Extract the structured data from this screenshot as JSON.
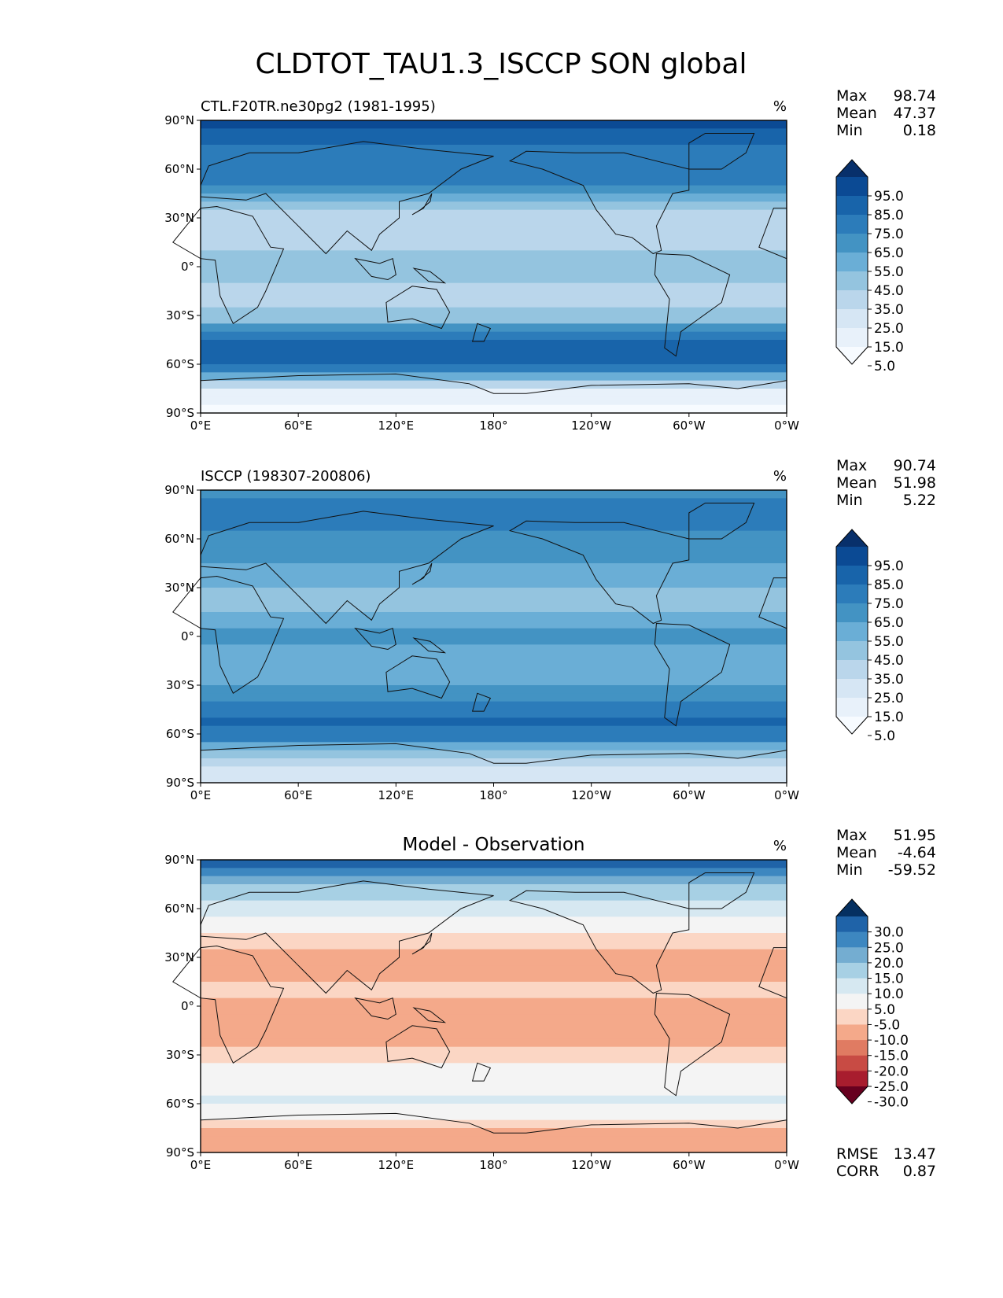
{
  "figure_title": "CLDTOT_TAU1.3_ISCCP SON global",
  "chart_data": [
    {
      "type": "heatmap",
      "panel": "test",
      "title_left": "CTL.F20TR.ne30pg2 (1981-1995)",
      "title_center": "",
      "units": "%",
      "xticks": [
        "0°E",
        "60°E",
        "120°E",
        "180°",
        "120°W",
        "60°W",
        "0°W"
      ],
      "yticks": [
        "90°N",
        "60°N",
        "30°N",
        "0°",
        "30°S",
        "60°S",
        "90°S"
      ],
      "xlim": [
        0,
        360
      ],
      "ylim": [
        -90,
        90
      ],
      "stats": [
        {
          "label": "Max",
          "value": "98.74"
        },
        {
          "label": "Mean",
          "value": "47.37"
        },
        {
          "label": "Min",
          "value": "0.18"
        }
      ],
      "colorbar": {
        "extend": "both",
        "tick_labels": [
          "95.0",
          "85.0",
          "75.0",
          "65.0",
          "55.0",
          "45.0",
          "35.0",
          "25.0",
          "15.0",
          "5.0"
        ],
        "colors": [
          "#08306b",
          "#0b4a94",
          "#1864aa",
          "#2c7cba",
          "#4393c3",
          "#6aaed6",
          "#94c4df",
          "#bad6eb",
          "#d6e6f4",
          "#e8f1fa",
          "#f7fbff"
        ]
      },
      "zonal_profile": [
        {
          "lat": 90,
          "value": 92
        },
        {
          "lat": 80,
          "value": 80
        },
        {
          "lat": 70,
          "value": 72
        },
        {
          "lat": 60,
          "value": 75
        },
        {
          "lat": 50,
          "value": 66
        },
        {
          "lat": 40,
          "value": 42
        },
        {
          "lat": 30,
          "value": 28
        },
        {
          "lat": 20,
          "value": 26
        },
        {
          "lat": 10,
          "value": 36
        },
        {
          "lat": 0,
          "value": 42
        },
        {
          "lat": -10,
          "value": 36
        },
        {
          "lat": -20,
          "value": 30
        },
        {
          "lat": -30,
          "value": 38
        },
        {
          "lat": -40,
          "value": 62
        },
        {
          "lat": -50,
          "value": 80
        },
        {
          "lat": -60,
          "value": 85
        },
        {
          "lat": -70,
          "value": 40
        },
        {
          "lat": -80,
          "value": 6
        },
        {
          "lat": -90,
          "value": 3
        }
      ]
    },
    {
      "type": "heatmap",
      "panel": "reference",
      "title_left": "ISCCP (198307-200806)",
      "title_center": "",
      "units": "%",
      "xticks": [
        "0°E",
        "60°E",
        "120°E",
        "180°",
        "120°W",
        "60°W",
        "0°W"
      ],
      "yticks": [
        "90°N",
        "60°N",
        "30°N",
        "0°",
        "30°S",
        "60°S",
        "90°S"
      ],
      "xlim": [
        0,
        360
      ],
      "ylim": [
        -90,
        90
      ],
      "stats": [
        {
          "label": "Max",
          "value": "90.74"
        },
        {
          "label": "Mean",
          "value": "51.98"
        },
        {
          "label": "Min",
          "value": "5.22"
        }
      ],
      "colorbar": {
        "extend": "both",
        "tick_labels": [
          "95.0",
          "85.0",
          "75.0",
          "65.0",
          "55.0",
          "45.0",
          "35.0",
          "25.0",
          "15.0",
          "5.0"
        ],
        "colors": [
          "#08306b",
          "#0b4a94",
          "#1864aa",
          "#2c7cba",
          "#4393c3",
          "#6aaed6",
          "#94c4df",
          "#bad6eb",
          "#d6e6f4",
          "#e8f1fa",
          "#f7fbff"
        ]
      },
      "zonal_profile": [
        {
          "lat": 90,
          "value": 60
        },
        {
          "lat": 80,
          "value": 70
        },
        {
          "lat": 70,
          "value": 66
        },
        {
          "lat": 60,
          "value": 64
        },
        {
          "lat": 50,
          "value": 62
        },
        {
          "lat": 40,
          "value": 52
        },
        {
          "lat": 30,
          "value": 44
        },
        {
          "lat": 20,
          "value": 42
        },
        {
          "lat": 10,
          "value": 52
        },
        {
          "lat": 0,
          "value": 56
        },
        {
          "lat": -10,
          "value": 52
        },
        {
          "lat": -20,
          "value": 46
        },
        {
          "lat": -30,
          "value": 52
        },
        {
          "lat": -40,
          "value": 68
        },
        {
          "lat": -50,
          "value": 76
        },
        {
          "lat": -60,
          "value": 74
        },
        {
          "lat": -70,
          "value": 40
        },
        {
          "lat": -80,
          "value": 22
        },
        {
          "lat": -90,
          "value": 20
        }
      ]
    },
    {
      "type": "heatmap",
      "panel": "difference",
      "title_left": "",
      "title_center": "Model - Observation",
      "units": "%",
      "xticks": [
        "0°E",
        "60°E",
        "120°E",
        "180°",
        "120°W",
        "60°W",
        "0°W"
      ],
      "yticks": [
        "90°N",
        "60°N",
        "30°N",
        "0°",
        "30°S",
        "60°S",
        "90°S"
      ],
      "xlim": [
        0,
        360
      ],
      "ylim": [
        -90,
        90
      ],
      "stats": [
        {
          "label": "Max",
          "value": "51.95"
        },
        {
          "label": "Mean",
          "value": "-4.64"
        },
        {
          "label": "Min",
          "value": "-59.52"
        }
      ],
      "bottom_stats": [
        {
          "label": "RMSE",
          "value": "13.47"
        },
        {
          "label": "CORR",
          "value": "0.87"
        }
      ],
      "colorbar": {
        "extend": "both",
        "tick_labels": [
          "30.0",
          "25.0",
          "20.0",
          "15.0",
          "10.0",
          "5.0",
          "-5.0",
          "-10.0",
          "-15.0",
          "-20.0",
          "-25.0",
          "-30.0"
        ],
        "colors": [
          "#053061",
          "#1f63a8",
          "#3d87c0",
          "#74add1",
          "#a7d0e4",
          "#d6e8f1",
          "#f4f4f4",
          "#fbd6c4",
          "#f4a98a",
          "#e07b62",
          "#c84b44",
          "#a81d2e",
          "#67001f"
        ]
      },
      "zonal_profile": [
        {
          "lat": 90,
          "value": 32
        },
        {
          "lat": 80,
          "value": 22
        },
        {
          "lat": 70,
          "value": 12
        },
        {
          "lat": 60,
          "value": 8
        },
        {
          "lat": 50,
          "value": 3
        },
        {
          "lat": 40,
          "value": -9
        },
        {
          "lat": 30,
          "value": -13
        },
        {
          "lat": 20,
          "value": -11
        },
        {
          "lat": 10,
          "value": -9
        },
        {
          "lat": 0,
          "value": -12
        },
        {
          "lat": -10,
          "value": -14
        },
        {
          "lat": -20,
          "value": -12
        },
        {
          "lat": -30,
          "value": -9
        },
        {
          "lat": -40,
          "value": -2
        },
        {
          "lat": -50,
          "value": 2
        },
        {
          "lat": -60,
          "value": 8
        },
        {
          "lat": -70,
          "value": -8
        },
        {
          "lat": -80,
          "value": -12
        },
        {
          "lat": -90,
          "value": -10
        }
      ]
    }
  ]
}
